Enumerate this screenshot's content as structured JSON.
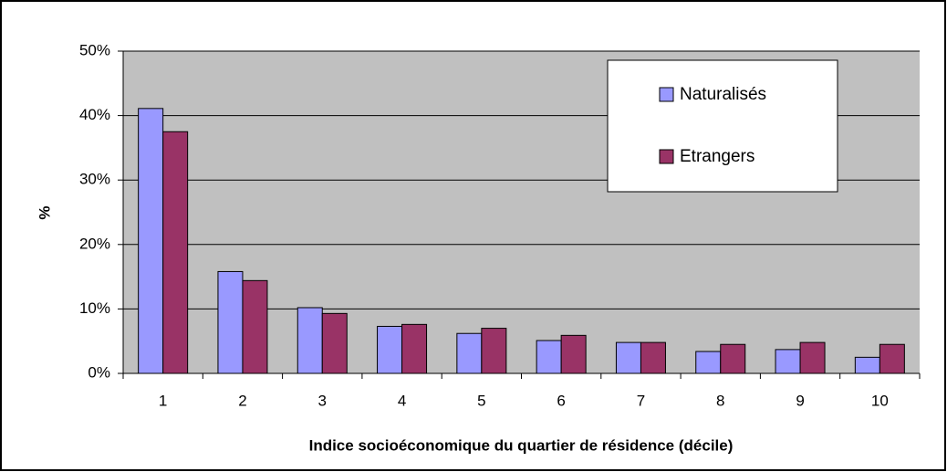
{
  "chart_data": {
    "type": "bar",
    "x_label": "Indice socioéconomique du quartier de résidence (décile)",
    "y_label": "%",
    "categories": [
      "1",
      "2",
      "3",
      "4",
      "5",
      "6",
      "7",
      "8",
      "9",
      "10"
    ],
    "series": [
      {
        "name": "Naturalisés",
        "color": "#9999ff",
        "values": [
          41.1,
          15.8,
          10.2,
          7.3,
          6.2,
          5.1,
          4.8,
          3.4,
          3.7,
          2.5
        ]
      },
      {
        "name": "Etrangers",
        "color": "#993366",
        "values": [
          37.5,
          14.4,
          9.3,
          7.6,
          7.0,
          5.9,
          4.8,
          4.5,
          4.8,
          4.5
        ]
      }
    ],
    "ylim": [
      0,
      50
    ],
    "yticks": [
      {
        "value": 0,
        "label": "0%"
      },
      {
        "value": 10,
        "label": "10%"
      },
      {
        "value": 20,
        "label": "20%"
      },
      {
        "value": 30,
        "label": "30%"
      },
      {
        "value": 40,
        "label": "40%"
      },
      {
        "value": 50,
        "label": "50%"
      }
    ],
    "grid": true,
    "legend": "upper-right"
  }
}
